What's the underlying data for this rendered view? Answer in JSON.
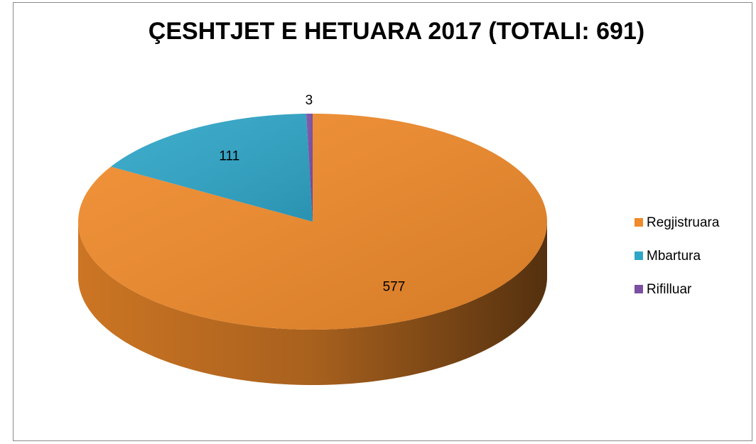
{
  "chart_data": {
    "type": "pie",
    "title": "ÇESHTJET E HETUARA 2017 (TOTALI: 691)",
    "categories": [
      "Regjistruara",
      "Mbartura",
      "Rifilluar"
    ],
    "values": [
      577,
      111,
      3
    ],
    "colors": [
      "#f08a2a",
      "#2fa6c8",
      "#7b4fa3"
    ],
    "legend": "right"
  }
}
